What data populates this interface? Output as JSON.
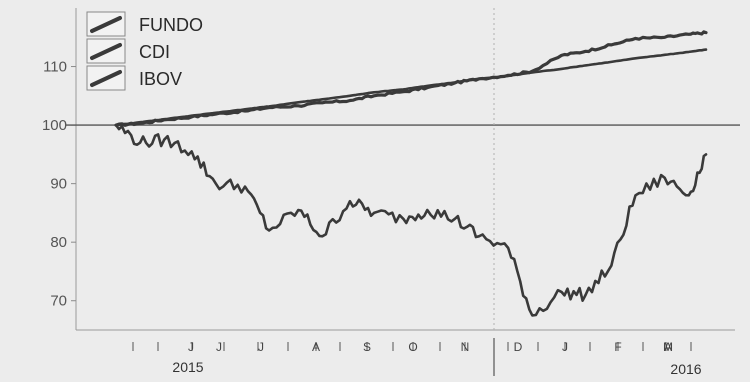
{
  "chart_data": {
    "type": "line",
    "title": "",
    "xlabel": "",
    "ylabel": "",
    "ylim": [
      65,
      120
    ],
    "yticks": [
      70,
      80,
      90,
      100,
      110
    ],
    "reference_line": 100,
    "grid": false,
    "legend_position": "top-left",
    "month_ticks": [
      "J",
      "J",
      "J",
      "A",
      "S",
      "O",
      "N",
      "D",
      "J",
      "F",
      "M",
      "A"
    ],
    "year_labels": [
      "2015",
      "2016"
    ],
    "x": [
      "2015-05-18",
      "2015-06-01",
      "2015-06-15",
      "2015-07-01",
      "2015-07-15",
      "2015-08-01",
      "2015-08-15",
      "2015-09-01",
      "2015-09-15",
      "2015-10-01",
      "2015-10-15",
      "2015-11-01",
      "2015-11-15",
      "2015-12-01",
      "2015-12-15",
      "2016-01-01",
      "2016-01-15",
      "2016-02-01",
      "2016-02-15",
      "2016-03-01",
      "2016-03-15",
      "2016-04-01",
      "2016-04-15",
      "2016-04-25"
    ],
    "series": [
      {
        "name": "FUNDO",
        "color": "#3a3a3a",
        "width": 3.2,
        "values": [
          100.0,
          100.3,
          100.9,
          101.4,
          101.9,
          102.4,
          103.0,
          103.3,
          103.8,
          104.2,
          105.0,
          105.7,
          106.4,
          107.2,
          107.9,
          108.5,
          109.2,
          111.9,
          112.6,
          113.7,
          114.8,
          115.0,
          115.5,
          115.8
        ]
      },
      {
        "name": "CDI",
        "color": "#3a3a3a",
        "width": 2.6,
        "values": [
          100.0,
          100.5,
          101.0,
          101.6,
          102.1,
          102.7,
          103.2,
          103.9,
          104.4,
          105.0,
          105.6,
          106.1,
          106.7,
          107.3,
          107.9,
          108.4,
          109.0,
          109.6,
          110.2,
          110.8,
          111.4,
          112.0,
          112.5,
          112.9
        ]
      },
      {
        "name": "IBOV",
        "color": "#3a3a3a",
        "width": 2.6,
        "values": [
          100.0,
          97.0,
          97.5,
          95.5,
          90.0,
          89.5,
          82.0,
          85.5,
          81.0,
          87.0,
          85.0,
          84.0,
          85.5,
          84.0,
          81.0,
          79.0,
          67.5,
          71.5,
          71.0,
          76.0,
          88.0,
          91.0,
          88.0,
          95.0
        ]
      }
    ]
  }
}
